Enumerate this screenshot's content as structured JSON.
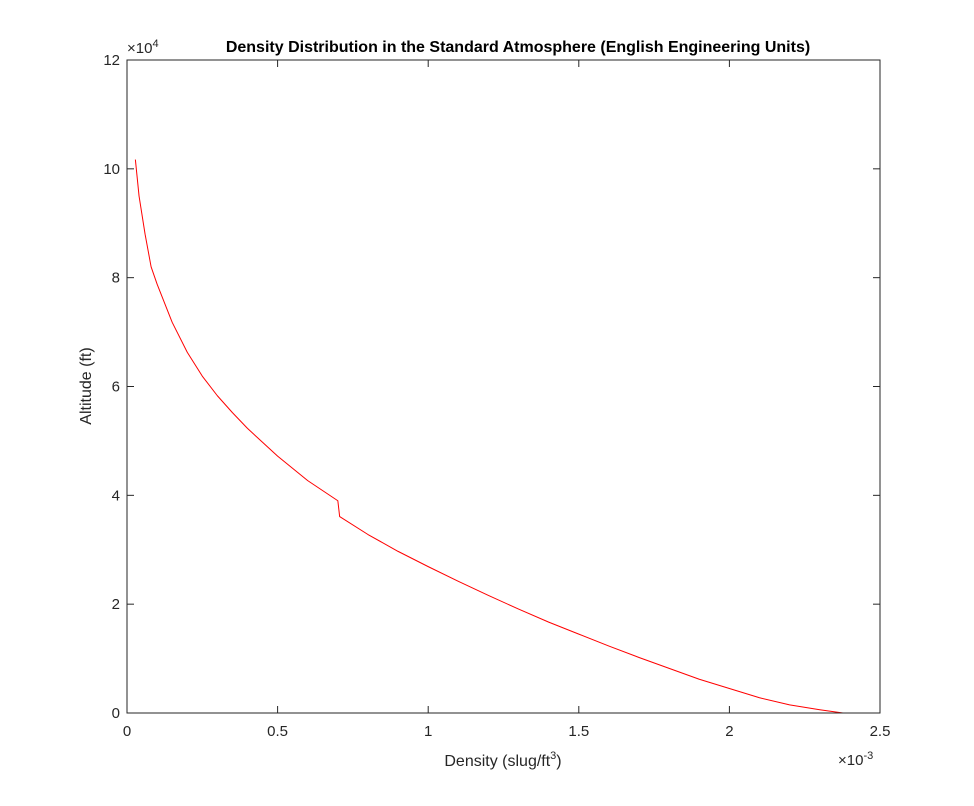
{
  "chart_data": {
    "type": "line",
    "title": "Density Distribution in the Standard Atmosphere (English Engineering Units)",
    "xlabel": "Density (slug/ft",
    "xlabel_superscript": "3",
    "xlabel_suffix": ")",
    "ylabel": "Altitude (ft)",
    "x_exponent_base": "×10",
    "x_exponent_power": "-3",
    "y_exponent_base": "×10",
    "y_exponent_power": "4",
    "x_scale": 0.001,
    "y_scale": 10000,
    "xlim": [
      0,
      0.0025
    ],
    "ylim": [
      0,
      120000
    ],
    "x_ticks": [
      0,
      0.0005,
      0.001,
      0.0015,
      0.002,
      0.0025
    ],
    "x_tick_labels": [
      "0",
      "0.5",
      "1",
      "1.5",
      "2",
      "2.5"
    ],
    "y_ticks": [
      0,
      20000,
      40000,
      60000,
      80000,
      100000,
      120000
    ],
    "y_tick_labels": [
      "0",
      "2",
      "4",
      "6",
      "8",
      "10",
      "12"
    ],
    "grid": false,
    "series": [
      {
        "color": "#ff0000",
        "points": [
          {
            "x": 2.78e-05,
            "y": 101700
          },
          {
            "x": 4e-05,
            "y": 95000
          },
          {
            "x": 6e-05,
            "y": 88000
          },
          {
            "x": 8e-05,
            "y": 82000
          },
          {
            "x": 0.0001,
            "y": 78800
          },
          {
            "x": 0.00015,
            "y": 71800
          },
          {
            "x": 0.0002,
            "y": 66300
          },
          {
            "x": 0.00025,
            "y": 61900
          },
          {
            "x": 0.0003,
            "y": 58300
          },
          {
            "x": 0.00035,
            "y": 55200
          },
          {
            "x": 0.0004,
            "y": 52300
          },
          {
            "x": 0.0005,
            "y": 47200
          },
          {
            "x": 0.0006,
            "y": 42700
          },
          {
            "x": 0.0007,
            "y": 39000
          },
          {
            "x": 0.000706,
            "y": 36100
          },
          {
            "x": 0.0008,
            "y": 32800
          },
          {
            "x": 0.0009,
            "y": 29700
          },
          {
            "x": 0.001,
            "y": 26900
          },
          {
            "x": 0.0011,
            "y": 24200
          },
          {
            "x": 0.0012,
            "y": 21600
          },
          {
            "x": 0.0013,
            "y": 19100
          },
          {
            "x": 0.0014,
            "y": 16700
          },
          {
            "x": 0.0015,
            "y": 14500
          },
          {
            "x": 0.0016,
            "y": 12300
          },
          {
            "x": 0.0017,
            "y": 10200
          },
          {
            "x": 0.0018,
            "y": 8200
          },
          {
            "x": 0.0019,
            "y": 6200
          },
          {
            "x": 0.002,
            "y": 4500
          },
          {
            "x": 0.0021,
            "y": 2800
          },
          {
            "x": 0.0022,
            "y": 1500
          },
          {
            "x": 0.0023,
            "y": 600
          },
          {
            "x": 0.002377,
            "y": 0
          }
        ]
      }
    ]
  }
}
